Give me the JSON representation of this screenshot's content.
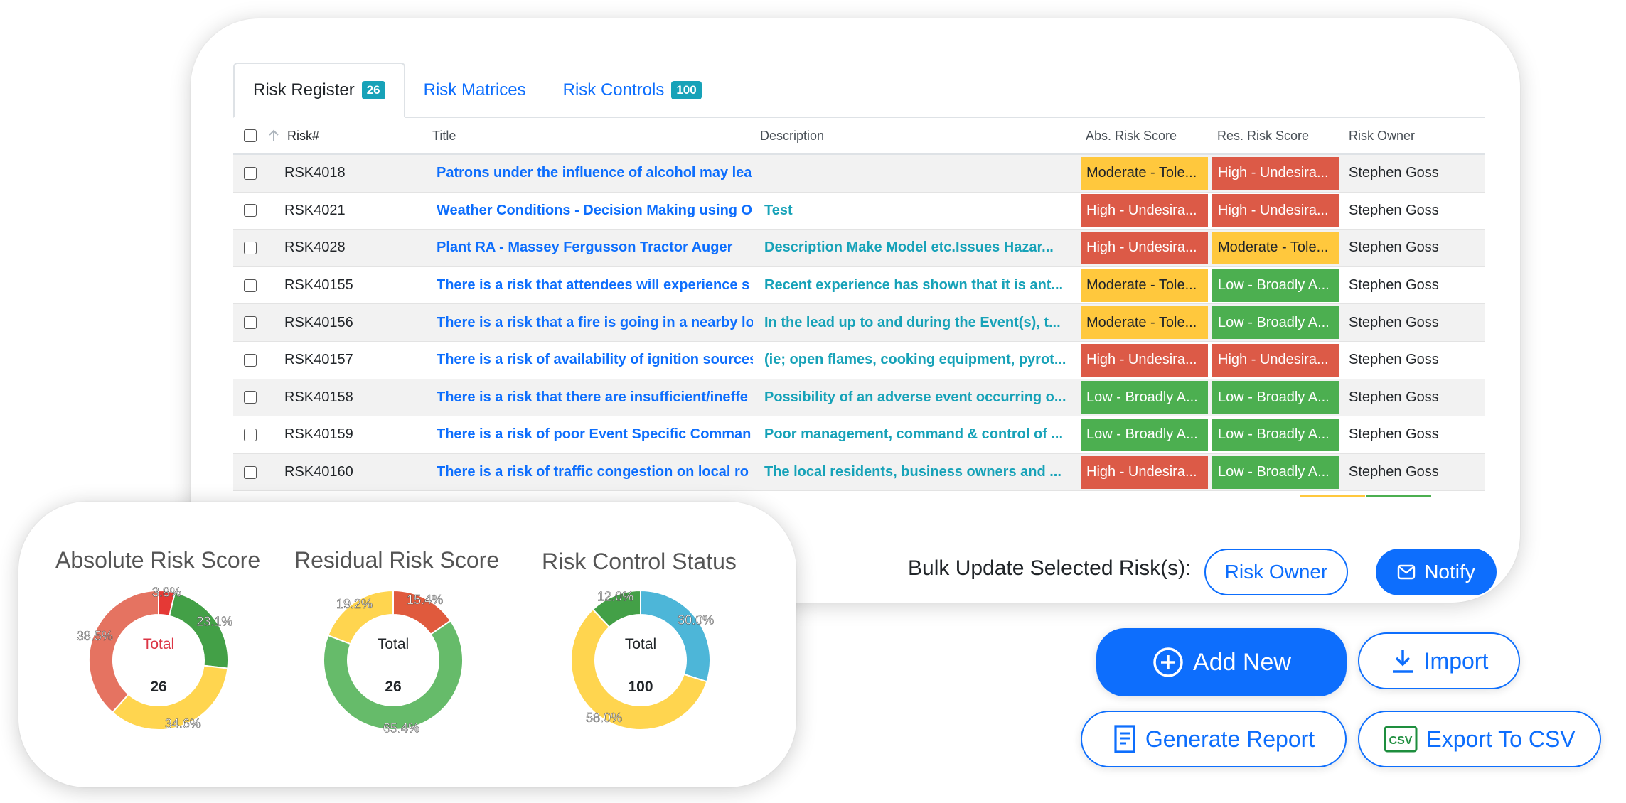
{
  "colors": {
    "primary": "#0d6efd",
    "teal": "#17a2b8",
    "moderate": "#ffc83d",
    "high": "#dc5a47",
    "low": "#4caf50"
  },
  "tabs": [
    {
      "label": "Risk Register",
      "badge": "26"
    },
    {
      "label": "Risk Matrices",
      "badge": ""
    },
    {
      "label": "Risk Controls",
      "badge": "100"
    }
  ],
  "table": {
    "columns": {
      "risk": "Risk#",
      "title": "Title",
      "description": "Description",
      "abs": "Abs. Risk Score",
      "res": "Res. Risk Score",
      "owner": "Risk Owner"
    },
    "rows": [
      {
        "risk": "RSK4018",
        "title": "Patrons under the influence of alcohol may lea",
        "description": "",
        "abs": "Moderate - Tole...",
        "abs_level": "moderate",
        "res": "High - Undesira...",
        "res_level": "high",
        "owner": "Stephen Goss"
      },
      {
        "risk": "RSK4021",
        "title": "Weather Conditions - Decision Making using O",
        "description": "Test",
        "abs": "High - Undesira...",
        "abs_level": "high",
        "res": "High - Undesira...",
        "res_level": "high",
        "owner": "Stephen Goss"
      },
      {
        "risk": "RSK4028",
        "title": "Plant RA - Massey Fergusson Tractor Auger",
        "description": "Description Make Model etc.Issues Hazar...",
        "abs": "High - Undesira...",
        "abs_level": "high",
        "res": "Moderate - Tole...",
        "res_level": "moderate",
        "owner": "Stephen Goss"
      },
      {
        "risk": "RSK40155",
        "title": "There is a risk that attendees will experience s",
        "description": "Recent experience has shown that it is ant...",
        "abs": "Moderate - Tole...",
        "abs_level": "moderate",
        "res": "Low - Broadly A...",
        "res_level": "low",
        "owner": "Stephen Goss"
      },
      {
        "risk": "RSK40156",
        "title": "There is a risk that a fire is going in a nearby lo",
        "description": "In the lead up to and during the Event(s), t...",
        "abs": "Moderate - Tole...",
        "abs_level": "moderate",
        "res": "Low - Broadly A...",
        "res_level": "low",
        "owner": "Stephen Goss"
      },
      {
        "risk": "RSK40157",
        "title": "There is a risk of availability of ignition sources",
        "description": "(ie; open flames, cooking equipment, pyrot...",
        "abs": "High - Undesira...",
        "abs_level": "high",
        "res": "High - Undesira...",
        "res_level": "high",
        "owner": "Stephen Goss"
      },
      {
        "risk": "RSK40158",
        "title": "There is a risk that there are insufficient/ineffe",
        "description": "Possibility of an adverse event occurring o...",
        "abs": "Low - Broadly A...",
        "abs_level": "low",
        "res": "Low - Broadly A...",
        "res_level": "low",
        "owner": "Stephen Goss"
      },
      {
        "risk": "RSK40159",
        "title": "There is a risk of poor Event Specific Comman",
        "description": "Poor management, command & control of ...",
        "abs": "Low - Broadly A...",
        "abs_level": "low",
        "res": "Low - Broadly A...",
        "res_level": "low",
        "owner": "Stephen Goss"
      },
      {
        "risk": "RSK40160",
        "title": "There is a risk of traffic congestion on local ro",
        "description": "The local residents, business owners and ...",
        "abs": "High - Undesira...",
        "abs_level": "high",
        "res": "Low - Broadly A...",
        "res_level": "low",
        "owner": "Stephen Goss"
      }
    ]
  },
  "bulk": {
    "label": "Bulk Update Selected Risk(s):",
    "risk_owner_button": "Risk Owner",
    "notify_button": "Notify"
  },
  "actions": {
    "add_new": "Add New",
    "import": "Import",
    "generate_report": "Generate Report",
    "export_csv": "Export To CSV",
    "csv_icon_text": "CSV"
  },
  "chart_data": [
    {
      "type": "pie",
      "title": "Absolute Risk Score",
      "center_label": "Total",
      "center_value": "26",
      "center_label_color": "#dc3545",
      "slices": [
        {
          "label": "3.8%",
          "value": 3.8,
          "color": "#e53935"
        },
        {
          "label": "23.1%",
          "value": 23.1,
          "color": "#43a047"
        },
        {
          "label": "34.6%",
          "value": 34.6,
          "color": "#ffd54f"
        },
        {
          "label": "38.5%",
          "value": 38.5,
          "color": "#e57361"
        }
      ]
    },
    {
      "type": "pie",
      "title": "Residual Risk Score",
      "center_label": "Total",
      "center_value": "26",
      "center_label_color": "#212529",
      "slices": [
        {
          "label": "15.4%",
          "value": 15.4,
          "color": "#e05a3d"
        },
        {
          "label": "65.4%",
          "value": 65.4,
          "color": "#66bb6a"
        },
        {
          "label": "19.2%",
          "value": 19.2,
          "color": "#ffd54f"
        }
      ]
    },
    {
      "type": "pie",
      "title": "Risk Control Status",
      "center_label": "Total",
      "center_value": "100",
      "center_label_color": "#212529",
      "slices": [
        {
          "label": "30.0%",
          "value": 30.0,
          "color": "#4db6d8"
        },
        {
          "label": "58.0%",
          "value": 58.0,
          "color": "#ffd54f"
        },
        {
          "label": "12.0%",
          "value": 12.0,
          "color": "#43a047"
        }
      ]
    }
  ]
}
